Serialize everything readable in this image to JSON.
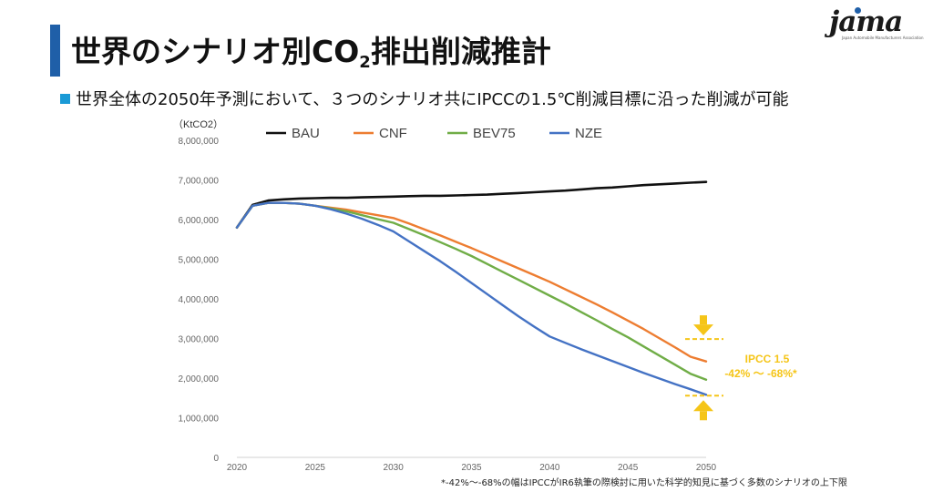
{
  "header": {
    "title_main": "世界のシナリオ別CO",
    "title_sub": "2",
    "title_rest": "排出削減推計",
    "subtitle": "世界全体の2050年予測において、３つのシナリオ共にIPCCの1.5℃削減目標に沿った削減が可能",
    "logo_text": "jama",
    "logo_sub": "Japan Automobile Manufacturers Association"
  },
  "chart_data": {
    "type": "line",
    "unit_label": "（KtCO2）",
    "x": [
      2020,
      2021,
      2022,
      2023,
      2024,
      2025,
      2026,
      2027,
      2028,
      2029,
      2030,
      2031,
      2032,
      2033,
      2034,
      2035,
      2036,
      2037,
      2038,
      2039,
      2040,
      2041,
      2042,
      2043,
      2044,
      2045,
      2046,
      2047,
      2048,
      2049,
      2050
    ],
    "xticks": [
      2020,
      2025,
      2030,
      2035,
      2040,
      2045,
      2050
    ],
    "xtick_labels": [
      "2020",
      "2025",
      "2030",
      "2035",
      "2040",
      "2045",
      "2050"
    ],
    "yticks": [
      0,
      1000000,
      2000000,
      3000000,
      4000000,
      5000000,
      6000000,
      7000000,
      8000000
    ],
    "ytick_labels": [
      "0",
      "1,000,000",
      "2,000,000",
      "3,000,000",
      "4,000,000",
      "5,000,000",
      "6,000,000",
      "7,000,000",
      "8,000,000"
    ],
    "xlim": [
      2020,
      2050
    ],
    "ylim": [
      0,
      8000000
    ],
    "legend_position": "top",
    "grid": false,
    "series": [
      {
        "name": "BAU",
        "color": "#111111",
        "values": [
          5800000,
          6370000,
          6480000,
          6510000,
          6530000,
          6540000,
          6550000,
          6550000,
          6560000,
          6570000,
          6580000,
          6590000,
          6600000,
          6600000,
          6610000,
          6620000,
          6630000,
          6650000,
          6670000,
          6690000,
          6710000,
          6730000,
          6760000,
          6790000,
          6810000,
          6840000,
          6870000,
          6890000,
          6910000,
          6930000,
          6950000
        ]
      },
      {
        "name": "CNF",
        "color": "#ed7d31",
        "values": [
          5800000,
          6350000,
          6420000,
          6420000,
          6400000,
          6350000,
          6300000,
          6250000,
          6180000,
          6110000,
          6040000,
          5900000,
          5750000,
          5600000,
          5440000,
          5280000,
          5110000,
          4940000,
          4770000,
          4600000,
          4430000,
          4240000,
          4050000,
          3860000,
          3660000,
          3450000,
          3240000,
          3010000,
          2780000,
          2540000,
          2420000
        ]
      },
      {
        "name": "BEV75",
        "color": "#70ad47",
        "values": [
          5800000,
          6350000,
          6420000,
          6420000,
          6400000,
          6350000,
          6280000,
          6210000,
          6110000,
          6010000,
          5920000,
          5760000,
          5600000,
          5430000,
          5260000,
          5080000,
          4880000,
          4680000,
          4480000,
          4280000,
          4080000,
          3880000,
          3670000,
          3460000,
          3240000,
          3030000,
          2800000,
          2570000,
          2340000,
          2110000,
          1960000
        ]
      },
      {
        "name": "NZE",
        "color": "#4472c4",
        "values": [
          5800000,
          6350000,
          6420000,
          6420000,
          6400000,
          6350000,
          6260000,
          6150000,
          6020000,
          5870000,
          5700000,
          5450000,
          5200000,
          4950000,
          4680000,
          4400000,
          4120000,
          3840000,
          3560000,
          3300000,
          3050000,
          2890000,
          2730000,
          2580000,
          2430000,
          2280000,
          2130000,
          1990000,
          1850000,
          1720000,
          1580000
        ]
      }
    ],
    "annotation": {
      "line1": "IPCC 1.5",
      "line2": "-42% ～ -68%*",
      "color": "#f5c518",
      "upper_value": 3400000,
      "lower_value": 1580000
    }
  },
  "footnote": "*-42%～-68%の幅はIPCCがIR6執筆の際検討に用いた科学的知見に基づく多数のシナリオの上下限"
}
